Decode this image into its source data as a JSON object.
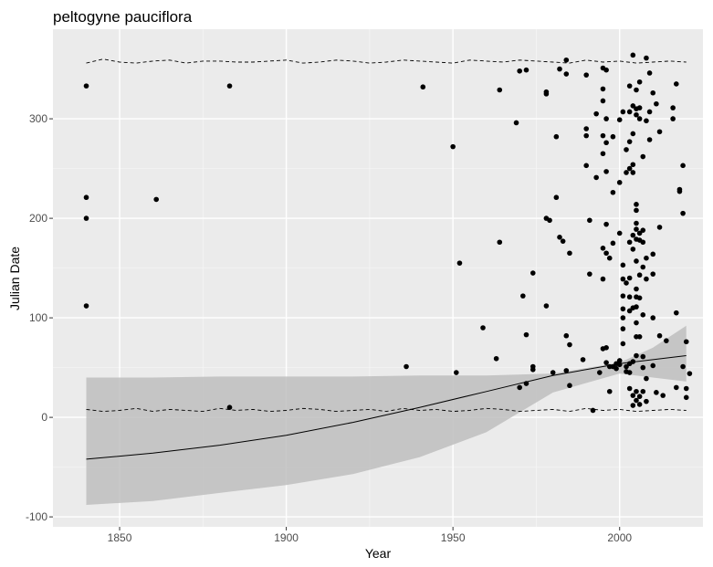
{
  "chart_data": {
    "type": "scatter",
    "title": "peltogyne pauciflora",
    "xlabel": "Year",
    "ylabel": "Julian Date",
    "xlim": [
      1830,
      2025
    ],
    "ylim": [
      -110,
      390
    ],
    "x_ticks": [
      1850,
      1900,
      1950,
      2000
    ],
    "y_ticks": [
      -100,
      0,
      100,
      200,
      300
    ],
    "x_tick_labels": [
      "1850",
      "1900",
      "1950",
      "2000"
    ],
    "y_tick_labels": [
      "-100",
      "0",
      "100",
      "200",
      "300"
    ],
    "grid": true,
    "colors": {
      "panel": "#ebebeb",
      "grid_major": "#ffffff",
      "grid_minor": "#f5f5f5",
      "points": "#000000",
      "ribbon": "#bebebe",
      "trend": "#000000"
    },
    "points": [
      {
        "x": 1840,
        "y": 333
      },
      {
        "x": 1840,
        "y": 221
      },
      {
        "x": 1840,
        "y": 200
      },
      {
        "x": 1840,
        "y": 112
      },
      {
        "x": 1861,
        "y": 219
      },
      {
        "x": 1883,
        "y": 333
      },
      {
        "x": 1883,
        "y": 10
      },
      {
        "x": 1936,
        "y": 51
      },
      {
        "x": 1941,
        "y": 332
      },
      {
        "x": 1950,
        "y": 272
      },
      {
        "x": 1951,
        "y": 45
      },
      {
        "x": 1952,
        "y": 155
      },
      {
        "x": 1959,
        "y": 90
      },
      {
        "x": 1963,
        "y": 59
      },
      {
        "x": 1964,
        "y": 329
      },
      {
        "x": 1964,
        "y": 176
      },
      {
        "x": 1969,
        "y": 296
      },
      {
        "x": 1970,
        "y": 348
      },
      {
        "x": 1970,
        "y": 30
      },
      {
        "x": 1971,
        "y": 122
      },
      {
        "x": 1972,
        "y": 349
      },
      {
        "x": 1972,
        "y": 83
      },
      {
        "x": 1972,
        "y": 34
      },
      {
        "x": 1974,
        "y": 145
      },
      {
        "x": 1974,
        "y": 51
      },
      {
        "x": 1974,
        "y": 48
      },
      {
        "x": 1978,
        "y": 327
      },
      {
        "x": 1978,
        "y": 325
      },
      {
        "x": 1978,
        "y": 200
      },
      {
        "x": 1979,
        "y": 198
      },
      {
        "x": 1978,
        "y": 112
      },
      {
        "x": 1980,
        "y": 45
      },
      {
        "x": 1981,
        "y": 282
      },
      {
        "x": 1981,
        "y": 221
      },
      {
        "x": 1982,
        "y": 350
      },
      {
        "x": 1982,
        "y": 181
      },
      {
        "x": 1983,
        "y": 177
      },
      {
        "x": 1984,
        "y": 359
      },
      {
        "x": 1984,
        "y": 345
      },
      {
        "x": 1984,
        "y": 82
      },
      {
        "x": 1984,
        "y": 47
      },
      {
        "x": 1985,
        "y": 165
      },
      {
        "x": 1985,
        "y": 73
      },
      {
        "x": 1985,
        "y": 32
      },
      {
        "x": 1989,
        "y": 58
      },
      {
        "x": 1990,
        "y": 344
      },
      {
        "x": 1990,
        "y": 290
      },
      {
        "x": 1990,
        "y": 283
      },
      {
        "x": 1990,
        "y": 253
      },
      {
        "x": 1991,
        "y": 198
      },
      {
        "x": 1991,
        "y": 144
      },
      {
        "x": 1992,
        "y": 7
      },
      {
        "x": 1993,
        "y": 305
      },
      {
        "x": 1993,
        "y": 241
      },
      {
        "x": 1994,
        "y": 45
      },
      {
        "x": 1995,
        "y": 351
      },
      {
        "x": 1995,
        "y": 330
      },
      {
        "x": 1995,
        "y": 318
      },
      {
        "x": 1995,
        "y": 283
      },
      {
        "x": 1995,
        "y": 265
      },
      {
        "x": 1995,
        "y": 170
      },
      {
        "x": 1995,
        "y": 139
      },
      {
        "x": 1995,
        "y": 69
      },
      {
        "x": 1996,
        "y": 349
      },
      {
        "x": 1996,
        "y": 300
      },
      {
        "x": 1996,
        "y": 276
      },
      {
        "x": 1996,
        "y": 247
      },
      {
        "x": 1996,
        "y": 194
      },
      {
        "x": 1996,
        "y": 165
      },
      {
        "x": 1996,
        "y": 70
      },
      {
        "x": 1996,
        "y": 55
      },
      {
        "x": 1997,
        "y": 160
      },
      {
        "x": 1997,
        "y": 51
      },
      {
        "x": 1997,
        "y": 26
      },
      {
        "x": 1998,
        "y": 282
      },
      {
        "x": 1998,
        "y": 226
      },
      {
        "x": 1998,
        "y": 175
      },
      {
        "x": 1998,
        "y": 51
      },
      {
        "x": 1999,
        "y": 54
      },
      {
        "x": 1999,
        "y": 49
      },
      {
        "x": 2000,
        "y": 299
      },
      {
        "x": 2000,
        "y": 236
      },
      {
        "x": 2000,
        "y": 185
      },
      {
        "x": 2000,
        "y": 57
      },
      {
        "x": 2000,
        "y": 53
      },
      {
        "x": 2001,
        "y": 307
      },
      {
        "x": 2001,
        "y": 153
      },
      {
        "x": 2001,
        "y": 139
      },
      {
        "x": 2001,
        "y": 122
      },
      {
        "x": 2001,
        "y": 109
      },
      {
        "x": 2001,
        "y": 100
      },
      {
        "x": 2001,
        "y": 89
      },
      {
        "x": 2001,
        "y": 74
      },
      {
        "x": 2002,
        "y": 269
      },
      {
        "x": 2002,
        "y": 246
      },
      {
        "x": 2002,
        "y": 135
      },
      {
        "x": 2002,
        "y": 51
      },
      {
        "x": 2002,
        "y": 46
      },
      {
        "x": 2003,
        "y": 333
      },
      {
        "x": 2003,
        "y": 307
      },
      {
        "x": 2003,
        "y": 277
      },
      {
        "x": 2003,
        "y": 250
      },
      {
        "x": 2003,
        "y": 176
      },
      {
        "x": 2003,
        "y": 140
      },
      {
        "x": 2003,
        "y": 121
      },
      {
        "x": 2003,
        "y": 107
      },
      {
        "x": 2003,
        "y": 54
      },
      {
        "x": 2003,
        "y": 45
      },
      {
        "x": 2003,
        "y": 29
      },
      {
        "x": 2004,
        "y": 364
      },
      {
        "x": 2004,
        "y": 313
      },
      {
        "x": 2004,
        "y": 285
      },
      {
        "x": 2004,
        "y": 254
      },
      {
        "x": 2004,
        "y": 246
      },
      {
        "x": 2004,
        "y": 183
      },
      {
        "x": 2004,
        "y": 169
      },
      {
        "x": 2004,
        "y": 110
      },
      {
        "x": 2004,
        "y": 56
      },
      {
        "x": 2004,
        "y": 22
      },
      {
        "x": 2004,
        "y": 12
      },
      {
        "x": 2005,
        "y": 329
      },
      {
        "x": 2005,
        "y": 310
      },
      {
        "x": 2005,
        "y": 304
      },
      {
        "x": 2005,
        "y": 214
      },
      {
        "x": 2005,
        "y": 208
      },
      {
        "x": 2005,
        "y": 195
      },
      {
        "x": 2005,
        "y": 189
      },
      {
        "x": 2005,
        "y": 179
      },
      {
        "x": 2005,
        "y": 157
      },
      {
        "x": 2005,
        "y": 129
      },
      {
        "x": 2005,
        "y": 121
      },
      {
        "x": 2005,
        "y": 111
      },
      {
        "x": 2005,
        "y": 95
      },
      {
        "x": 2005,
        "y": 81
      },
      {
        "x": 2005,
        "y": 62
      },
      {
        "x": 2005,
        "y": 26
      },
      {
        "x": 2005,
        "y": 17
      },
      {
        "x": 2006,
        "y": 337
      },
      {
        "x": 2006,
        "y": 311
      },
      {
        "x": 2006,
        "y": 300
      },
      {
        "x": 2006,
        "y": 185
      },
      {
        "x": 2006,
        "y": 178
      },
      {
        "x": 2006,
        "y": 143
      },
      {
        "x": 2006,
        "y": 120
      },
      {
        "x": 2006,
        "y": 81
      },
      {
        "x": 2006,
        "y": 21
      },
      {
        "x": 2006,
        "y": 13
      },
      {
        "x": 2007,
        "y": 262
      },
      {
        "x": 2007,
        "y": 188
      },
      {
        "x": 2007,
        "y": 176
      },
      {
        "x": 2007,
        "y": 151
      },
      {
        "x": 2007,
        "y": 103
      },
      {
        "x": 2007,
        "y": 61
      },
      {
        "x": 2007,
        "y": 50
      },
      {
        "x": 2007,
        "y": 26
      },
      {
        "x": 2008,
        "y": 361
      },
      {
        "x": 2008,
        "y": 298
      },
      {
        "x": 2008,
        "y": 160
      },
      {
        "x": 2008,
        "y": 139
      },
      {
        "x": 2008,
        "y": 39
      },
      {
        "x": 2008,
        "y": 16
      },
      {
        "x": 2009,
        "y": 346
      },
      {
        "x": 2009,
        "y": 307
      },
      {
        "x": 2009,
        "y": 279
      },
      {
        "x": 2010,
        "y": 326
      },
      {
        "x": 2010,
        "y": 164
      },
      {
        "x": 2010,
        "y": 144
      },
      {
        "x": 2010,
        "y": 100
      },
      {
        "x": 2010,
        "y": 52
      },
      {
        "x": 2011,
        "y": 315
      },
      {
        "x": 2011,
        "y": 25
      },
      {
        "x": 2012,
        "y": 287
      },
      {
        "x": 2012,
        "y": 191
      },
      {
        "x": 2012,
        "y": 82
      },
      {
        "x": 2013,
        "y": 22
      },
      {
        "x": 2014,
        "y": 77
      },
      {
        "x": 2016,
        "y": 311
      },
      {
        "x": 2016,
        "y": 300
      },
      {
        "x": 2017,
        "y": 335
      },
      {
        "x": 2017,
        "y": 105
      },
      {
        "x": 2017,
        "y": 30
      },
      {
        "x": 2018,
        "y": 229
      },
      {
        "x": 2018,
        "y": 227
      },
      {
        "x": 2019,
        "y": 253
      },
      {
        "x": 2019,
        "y": 205
      },
      {
        "x": 2019,
        "y": 51
      },
      {
        "x": 2020,
        "y": 76
      },
      {
        "x": 2020,
        "y": 29
      },
      {
        "x": 2020,
        "y": 20
      },
      {
        "x": 2021,
        "y": 44
      }
    ],
    "trend_line": {
      "x": [
        1840,
        1860,
        1880,
        1900,
        1920,
        1940,
        1960,
        1980,
        2000,
        2020
      ],
      "y": [
        -42,
        -36,
        -28,
        -18,
        -5,
        10,
        26,
        42,
        54,
        62
      ]
    },
    "confidence_band": {
      "x": [
        1840,
        1860,
        1880,
        1900,
        1920,
        1940,
        1960,
        1980,
        2000,
        2010,
        2020
      ],
      "upper": [
        40,
        40,
        41,
        41,
        41,
        42,
        42,
        44,
        55,
        70,
        92
      ],
      "lower": [
        -88,
        -84,
        -76,
        -68,
        -57,
        -40,
        -15,
        25,
        44,
        40,
        36
      ]
    },
    "quantile_upper": {
      "x": [
        1840,
        1845,
        1850,
        1855,
        1860,
        1865,
        1870,
        1875,
        1880,
        1885,
        1890,
        1895,
        1900,
        1905,
        1910,
        1915,
        1920,
        1925,
        1930,
        1935,
        1940,
        1945,
        1950,
        1955,
        1960,
        1965,
        1970,
        1975,
        1980,
        1985,
        1990,
        1995,
        2000,
        2005,
        2010,
        2015,
        2020
      ],
      "y": [
        356,
        360,
        357,
        356,
        358,
        359,
        356,
        358,
        358,
        357,
        357,
        358,
        359,
        356,
        357,
        359,
        358,
        356,
        357,
        359,
        358,
        357,
        356,
        359,
        358,
        357,
        359,
        358,
        357,
        356,
        359,
        357,
        358,
        356,
        357,
        358,
        357
      ]
    },
    "quantile_lower": {
      "x": [
        1840,
        1845,
        1850,
        1855,
        1860,
        1865,
        1870,
        1875,
        1880,
        1885,
        1890,
        1895,
        1900,
        1905,
        1910,
        1915,
        1920,
        1925,
        1930,
        1935,
        1940,
        1945,
        1950,
        1955,
        1960,
        1965,
        1970,
        1975,
        1980,
        1985,
        1990,
        1995,
        2000,
        2005,
        2010,
        2015,
        2020
      ],
      "y": [
        8,
        6,
        7,
        9,
        6,
        8,
        7,
        6,
        9,
        7,
        8,
        6,
        7,
        9,
        8,
        6,
        7,
        8,
        6,
        9,
        7,
        8,
        6,
        7,
        9,
        8,
        6,
        7,
        8,
        6,
        9,
        7,
        8,
        6,
        7,
        8,
        7
      ]
    }
  }
}
